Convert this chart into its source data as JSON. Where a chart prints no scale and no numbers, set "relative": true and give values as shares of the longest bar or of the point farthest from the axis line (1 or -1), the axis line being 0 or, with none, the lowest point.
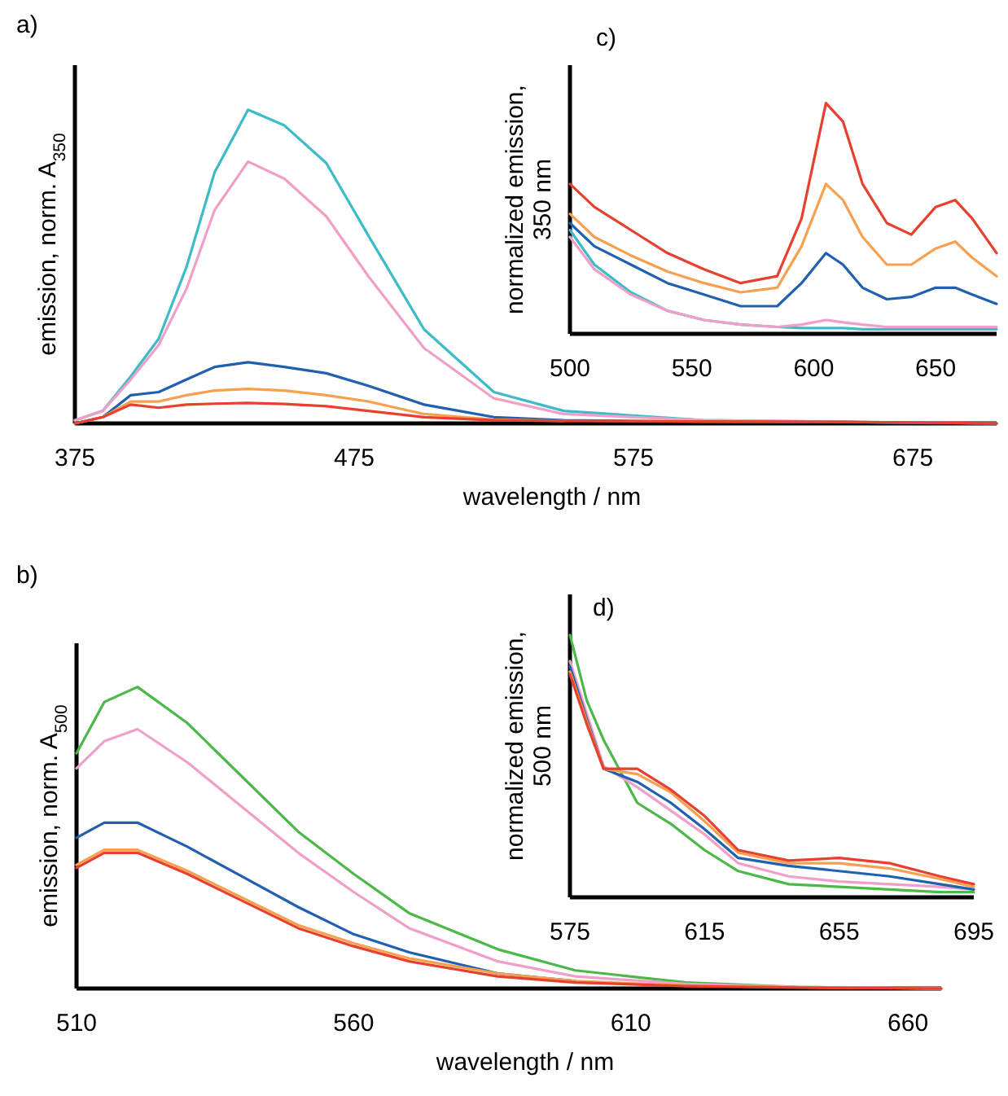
{
  "chart_data": [
    {
      "type": "line",
      "title": "a)",
      "xlabel": "wavelength / nm",
      "ylabel": "emission, norm. A$_{350}$",
      "relative": true,
      "xlim": [
        375,
        705
      ],
      "xticks": [
        375,
        475,
        575,
        675
      ],
      "x": [
        375,
        385,
        395,
        405,
        415,
        425,
        437,
        450,
        465,
        480,
        500,
        525,
        550,
        600,
        650,
        705
      ],
      "series": [
        {
          "color": "#3bbcc8",
          "values": [
            0.01,
            0.04,
            0.15,
            0.27,
            0.5,
            0.8,
            1.0,
            0.95,
            0.83,
            0.6,
            0.3,
            0.1,
            0.04,
            0.01,
            0.005,
            0
          ]
        },
        {
          "color": "#f0a0c8",
          "values": [
            0.01,
            0.04,
            0.14,
            0.25,
            0.43,
            0.68,
            0.835,
            0.78,
            0.66,
            0.47,
            0.24,
            0.08,
            0.03,
            0.01,
            0.005,
            0
          ]
        },
        {
          "color": "#2060b0",
          "values": [
            0,
            0.02,
            0.09,
            0.1,
            0.14,
            0.18,
            0.195,
            0.18,
            0.16,
            0.12,
            0.06,
            0.02,
            0.01,
            0.005,
            0.004,
            0
          ]
        },
        {
          "color": "#f7a050",
          "values": [
            0,
            0.02,
            0.07,
            0.07,
            0.09,
            0.105,
            0.11,
            0.105,
            0.09,
            0.07,
            0.03,
            0.012,
            0.008,
            null,
            null,
            null
          ]
        },
        {
          "color": "#e8402e",
          "values": [
            0,
            0.02,
            0.06,
            0.05,
            0.06,
            0.063,
            0.065,
            0.062,
            0.055,
            0.04,
            0.02,
            0.01,
            0.008,
            0.006,
            0.005,
            0
          ]
        }
      ]
    },
    {
      "type": "line",
      "title": "c)",
      "ylabel": "normalized emission, 350 nm",
      "relative": true,
      "xlim": [
        500,
        675
      ],
      "xticks": [
        500,
        550,
        600,
        650
      ],
      "x": [
        500,
        510,
        525,
        540,
        555,
        570,
        585,
        595,
        605,
        612,
        620,
        630,
        640,
        650,
        658,
        665,
        675
      ],
      "series": [
        {
          "color": "#e8402e",
          "values": [
            0.65,
            0.55,
            0.45,
            0.35,
            0.28,
            0.22,
            0.25,
            0.5,
            1.0,
            0.92,
            0.65,
            0.48,
            0.43,
            0.55,
            0.58,
            0.5,
            0.35
          ]
        },
        {
          "color": "#f7a050",
          "values": [
            0.52,
            0.42,
            0.34,
            0.27,
            0.22,
            0.18,
            0.2,
            0.38,
            0.65,
            0.58,
            0.42,
            0.3,
            0.3,
            0.37,
            0.4,
            0.33,
            0.25
          ]
        },
        {
          "color": "#2060b0",
          "values": [
            0.48,
            0.38,
            0.3,
            0.22,
            0.17,
            0.12,
            0.12,
            0.22,
            0.35,
            0.3,
            0.2,
            0.15,
            0.16,
            0.2,
            0.2,
            0.17,
            0.13
          ]
        },
        {
          "color": "#3bbcc8",
          "values": [
            0.45,
            0.3,
            0.18,
            0.1,
            0.06,
            0.04,
            0.03,
            0.025,
            0.025,
            0.025,
            0.02,
            0.02,
            0.02,
            0.02,
            0.02,
            0.02,
            0.02
          ]
        },
        {
          "color": "#f0a0c8",
          "values": [
            0.42,
            0.28,
            0.17,
            0.1,
            0.06,
            0.04,
            0.03,
            0.04,
            0.06,
            0.05,
            0.04,
            0.03,
            0.03,
            0.03,
            0.03,
            0.03,
            0.03
          ]
        }
      ]
    },
    {
      "type": "line",
      "title": "b)",
      "xlabel": "wavelength / nm",
      "ylabel": "emission, norm. A$_{500}$",
      "relative": true,
      "xlim": [
        510,
        666
      ],
      "xticks": [
        510,
        560,
        610,
        660
      ],
      "x": [
        510,
        515,
        521,
        530,
        540,
        550,
        560,
        570,
        586,
        600,
        620,
        640,
        666
      ],
      "series": [
        {
          "color": "#4cb848",
          "values": [
            0.78,
            0.95,
            1.0,
            0.88,
            0.7,
            0.52,
            0.38,
            0.25,
            0.13,
            0.06,
            0.02,
            0.005,
            0
          ]
        },
        {
          "color": "#f0a0c8",
          "values": [
            0.73,
            0.82,
            0.86,
            0.75,
            0.6,
            0.45,
            0.32,
            0.2,
            0.09,
            0.04,
            0.015,
            0.005,
            0
          ]
        },
        {
          "color": "#2060b0",
          "values": [
            0.5,
            0.55,
            0.55,
            0.47,
            0.37,
            0.27,
            0.18,
            0.12,
            0.05,
            0.025,
            null,
            null,
            null
          ]
        },
        {
          "color": "#f7a050",
          "values": [
            0.41,
            0.46,
            0.46,
            0.39,
            0.3,
            0.21,
            0.15,
            0.1,
            0.05,
            0.025,
            0.01,
            0.004,
            0
          ]
        },
        {
          "color": "#e8402e",
          "values": [
            0.4,
            0.45,
            0.45,
            0.38,
            0.29,
            0.2,
            0.14,
            0.09,
            0.04,
            0.02,
            0.008,
            0.003,
            0
          ]
        }
      ]
    },
    {
      "type": "line",
      "title": "d)",
      "ylabel": "normalized emission, 500 nm",
      "relative": true,
      "xlim": [
        575,
        695
      ],
      "xticks": [
        575,
        615,
        655,
        695
      ],
      "x": [
        575,
        580,
        585,
        595,
        605,
        615,
        625,
        640,
        655,
        670,
        685,
        695
      ],
      "series": [
        {
          "color": "#4cb848",
          "values": [
            1.0,
            0.75,
            0.6,
            0.36,
            0.28,
            0.18,
            0.1,
            0.05,
            0.04,
            0.03,
            0.02,
            0.02
          ]
        },
        {
          "color": "#f0a0c8",
          "values": [
            0.9,
            0.7,
            0.5,
            0.42,
            0.33,
            0.24,
            0.13,
            0.08,
            0.06,
            0.05,
            0.04,
            0.03
          ]
        },
        {
          "color": "#2060b0",
          "values": [
            0.88,
            0.68,
            0.49,
            0.44,
            0.36,
            0.26,
            0.15,
            0.12,
            0.1,
            0.08,
            0.05,
            0.03
          ]
        },
        {
          "color": "#f7a050",
          "values": [
            0.86,
            0.67,
            0.49,
            0.47,
            0.4,
            0.29,
            0.17,
            0.13,
            0.13,
            0.11,
            0.07,
            0.04
          ]
        },
        {
          "color": "#e8402e",
          "values": [
            0.85,
            0.66,
            0.49,
            0.49,
            0.41,
            0.31,
            0.18,
            0.14,
            0.15,
            0.13,
            0.08,
            0.05
          ]
        }
      ]
    }
  ]
}
